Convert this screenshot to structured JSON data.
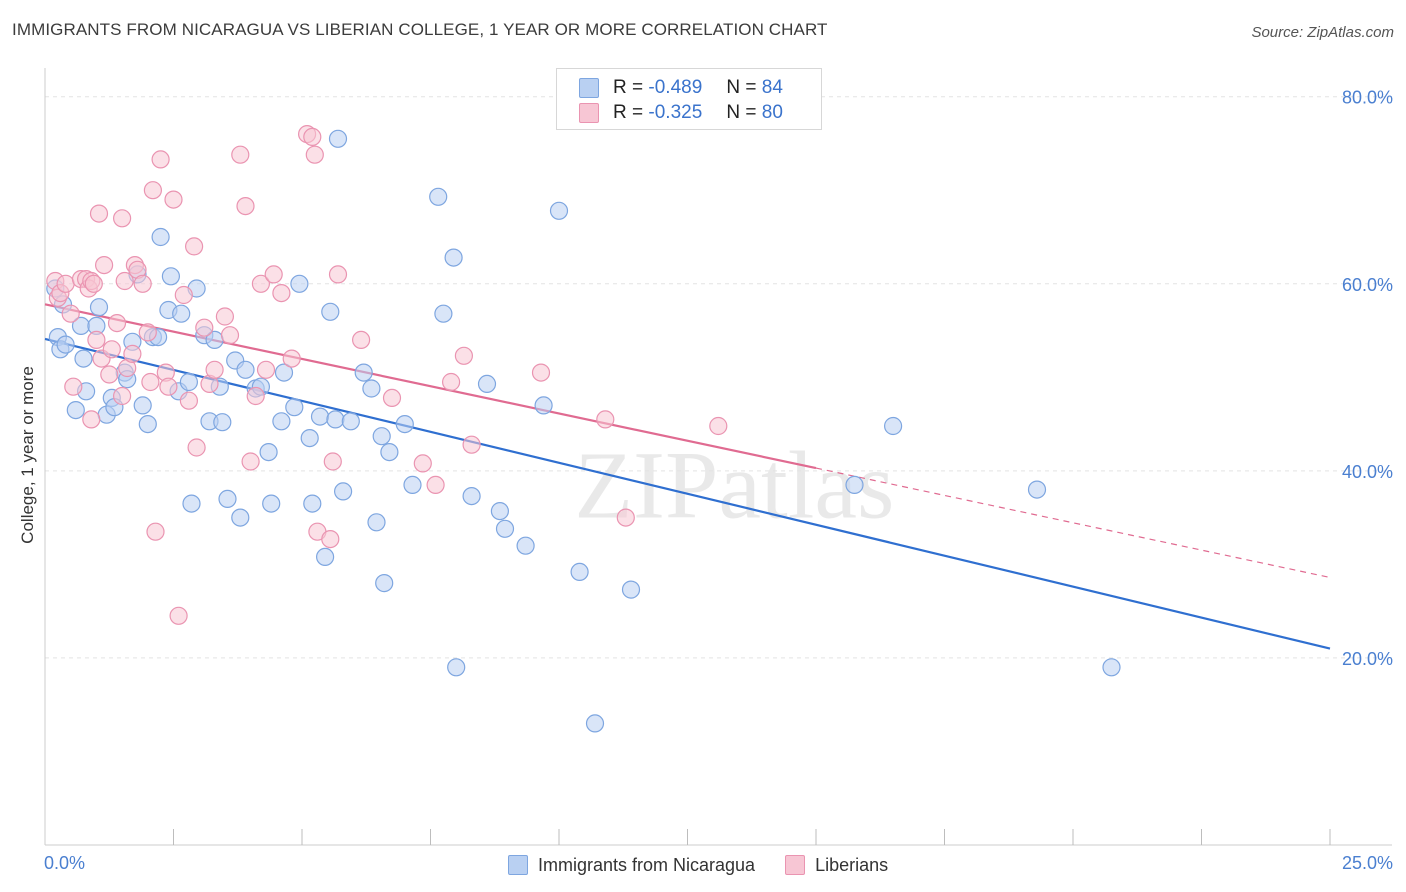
{
  "title": "IMMIGRANTS FROM NICARAGUA VS LIBERIAN COLLEGE, 1 YEAR OR MORE CORRELATION CHART",
  "source": "Source: ZipAtlas.com",
  "watermark": "ZIPatlas",
  "legend_top": [
    {
      "r_label": "R =",
      "r_value": "-0.489",
      "n_label": "N =",
      "n_value": "84"
    },
    {
      "r_label": "R =",
      "r_value": "-0.325",
      "n_label": "N =",
      "n_value": "80"
    }
  ],
  "legend_bottom": [
    "Immigrants from Nicaragua",
    "Liberians"
  ],
  "colors": {
    "blue_fill": "#b9d0f2",
    "blue_stroke": "#7ea6e0",
    "blue_line": "#2f6fd0",
    "pink_fill": "#f7c6d4",
    "pink_stroke": "#ea94b1",
    "pink_line": "#e06b91",
    "axis_text": "#4a7fd0",
    "grid": "#e3e3e3"
  },
  "chart_data": {
    "type": "scatter",
    "title": "IMMIGRANTS FROM NICARAGUA VS LIBERIAN COLLEGE, 1 YEAR OR MORE CORRELATION CHART",
    "xlabel": "",
    "ylabel": "College, 1 year or more",
    "xlim": [
      0,
      25
    ],
    "ylim": [
      0,
      82
    ],
    "x_tick_labels": [
      "0.0%",
      "25.0%"
    ],
    "y_ticks": [
      20,
      40,
      60,
      80
    ],
    "y_tick_labels": [
      "20.0%",
      "40.0%",
      "60.0%",
      "80.0%"
    ],
    "grid": "horizontal dashed",
    "legend_position": "top-center and bottom",
    "series": [
      {
        "name": "Immigrants from Nicaragua",
        "r": -0.489,
        "n": 84,
        "trend": {
          "x": [
            0,
            25
          ],
          "y": [
            54.1,
            21.0
          ]
        },
        "points": [
          [
            0.2,
            59.5
          ],
          [
            0.25,
            54.3
          ],
          [
            0.3,
            53.0
          ],
          [
            0.35,
            57.8
          ],
          [
            0.4,
            53.5
          ],
          [
            0.6,
            46.5
          ],
          [
            0.7,
            55.5
          ],
          [
            0.75,
            52.0
          ],
          [
            0.8,
            48.5
          ],
          [
            1.0,
            55.5
          ],
          [
            1.05,
            57.5
          ],
          [
            1.2,
            46.0
          ],
          [
            1.3,
            47.8
          ],
          [
            1.35,
            46.8
          ],
          [
            1.55,
            50.5
          ],
          [
            1.6,
            49.8
          ],
          [
            1.7,
            53.8
          ],
          [
            1.8,
            61.0
          ],
          [
            1.9,
            47.0
          ],
          [
            2.0,
            45.0
          ],
          [
            2.1,
            54.3
          ],
          [
            2.2,
            54.3
          ],
          [
            2.25,
            65.0
          ],
          [
            2.4,
            57.2
          ],
          [
            2.45,
            60.8
          ],
          [
            2.6,
            48.5
          ],
          [
            2.65,
            56.8
          ],
          [
            2.8,
            49.5
          ],
          [
            2.85,
            36.5
          ],
          [
            2.95,
            59.5
          ],
          [
            3.1,
            54.5
          ],
          [
            3.2,
            45.3
          ],
          [
            3.3,
            54.0
          ],
          [
            3.4,
            49.0
          ],
          [
            3.45,
            45.2
          ],
          [
            3.55,
            37.0
          ],
          [
            3.7,
            51.8
          ],
          [
            3.8,
            35.0
          ],
          [
            3.9,
            50.8
          ],
          [
            4.1,
            48.8
          ],
          [
            4.2,
            49.0
          ],
          [
            4.35,
            42.0
          ],
          [
            4.4,
            36.5
          ],
          [
            4.6,
            45.3
          ],
          [
            4.65,
            50.5
          ],
          [
            4.85,
            46.8
          ],
          [
            4.95,
            60.0
          ],
          [
            5.15,
            43.5
          ],
          [
            5.2,
            36.5
          ],
          [
            5.35,
            45.8
          ],
          [
            5.45,
            30.8
          ],
          [
            5.55,
            57.0
          ],
          [
            5.65,
            45.5
          ],
          [
            5.7,
            75.5
          ],
          [
            5.8,
            37.8
          ],
          [
            5.95,
            45.3
          ],
          [
            6.2,
            50.5
          ],
          [
            6.35,
            48.8
          ],
          [
            6.45,
            34.5
          ],
          [
            6.55,
            43.7
          ],
          [
            6.6,
            28.0
          ],
          [
            6.7,
            42.0
          ],
          [
            7.0,
            45.0
          ],
          [
            7.15,
            38.5
          ],
          [
            7.65,
            69.3
          ],
          [
            7.75,
            56.8
          ],
          [
            7.95,
            62.8
          ],
          [
            8.0,
            19.0
          ],
          [
            8.3,
            37.3
          ],
          [
            8.6,
            49.3
          ],
          [
            8.85,
            35.7
          ],
          [
            8.95,
            33.8
          ],
          [
            9.35,
            32.0
          ],
          [
            9.7,
            47.0
          ],
          [
            10.0,
            67.8
          ],
          [
            10.4,
            29.2
          ],
          [
            10.7,
            13.0
          ],
          [
            11.4,
            27.3
          ],
          [
            15.75,
            38.5
          ],
          [
            16.5,
            44.8
          ],
          [
            19.3,
            38.0
          ],
          [
            20.75,
            19.0
          ]
        ]
      },
      {
        "name": "Liberians",
        "r": -0.325,
        "n": 80,
        "trend": {
          "x": [
            0,
            15
          ],
          "y": [
            57.8,
            40.3
          ]
        },
        "trend_dashed": {
          "x": [
            15,
            25
          ],
          "y": [
            40.3,
            28.6
          ]
        },
        "points": [
          [
            0.2,
            60.3
          ],
          [
            0.25,
            58.5
          ],
          [
            0.3,
            59.0
          ],
          [
            0.4,
            60.0
          ],
          [
            0.5,
            56.8
          ],
          [
            0.55,
            49.0
          ],
          [
            0.7,
            60.5
          ],
          [
            0.8,
            60.5
          ],
          [
            0.85,
            59.5
          ],
          [
            0.9,
            60.3
          ],
          [
            0.95,
            60.0
          ],
          [
            0.9,
            45.5
          ],
          [
            1.0,
            54.0
          ],
          [
            1.05,
            67.5
          ],
          [
            1.1,
            52.0
          ],
          [
            1.15,
            62.0
          ],
          [
            1.25,
            50.3
          ],
          [
            1.3,
            53.0
          ],
          [
            1.4,
            55.8
          ],
          [
            1.5,
            67.0
          ],
          [
            1.5,
            48.0
          ],
          [
            1.55,
            60.3
          ],
          [
            1.6,
            51.0
          ],
          [
            1.7,
            52.5
          ],
          [
            1.75,
            62.0
          ],
          [
            1.8,
            61.5
          ],
          [
            1.9,
            60.0
          ],
          [
            2.0,
            54.8
          ],
          [
            2.05,
            49.5
          ],
          [
            2.1,
            70.0
          ],
          [
            2.15,
            33.5
          ],
          [
            2.25,
            73.3
          ],
          [
            2.35,
            50.5
          ],
          [
            2.4,
            49.0
          ],
          [
            2.5,
            69.0
          ],
          [
            2.6,
            24.5
          ],
          [
            2.7,
            58.8
          ],
          [
            2.8,
            47.5
          ],
          [
            2.9,
            64.0
          ],
          [
            2.95,
            42.5
          ],
          [
            3.1,
            55.3
          ],
          [
            3.2,
            49.3
          ],
          [
            3.3,
            50.8
          ],
          [
            3.5,
            56.5
          ],
          [
            3.6,
            54.5
          ],
          [
            3.8,
            73.8
          ],
          [
            3.9,
            68.3
          ],
          [
            4.0,
            41.0
          ],
          [
            4.1,
            48.0
          ],
          [
            4.2,
            60.0
          ],
          [
            4.3,
            50.8
          ],
          [
            4.45,
            61.0
          ],
          [
            4.6,
            59.0
          ],
          [
            4.8,
            52.0
          ],
          [
            5.1,
            76.0
          ],
          [
            5.2,
            75.7
          ],
          [
            5.25,
            73.8
          ],
          [
            5.3,
            33.5
          ],
          [
            5.55,
            32.7
          ],
          [
            5.6,
            41.0
          ],
          [
            5.7,
            61.0
          ],
          [
            6.15,
            54.0
          ],
          [
            6.75,
            47.8
          ],
          [
            7.35,
            40.8
          ],
          [
            7.6,
            38.5
          ],
          [
            7.9,
            49.5
          ],
          [
            8.15,
            52.3
          ],
          [
            8.3,
            42.8
          ],
          [
            9.65,
            50.5
          ],
          [
            10.9,
            45.5
          ],
          [
            11.3,
            35.0
          ],
          [
            13.1,
            44.8
          ]
        ]
      }
    ]
  }
}
